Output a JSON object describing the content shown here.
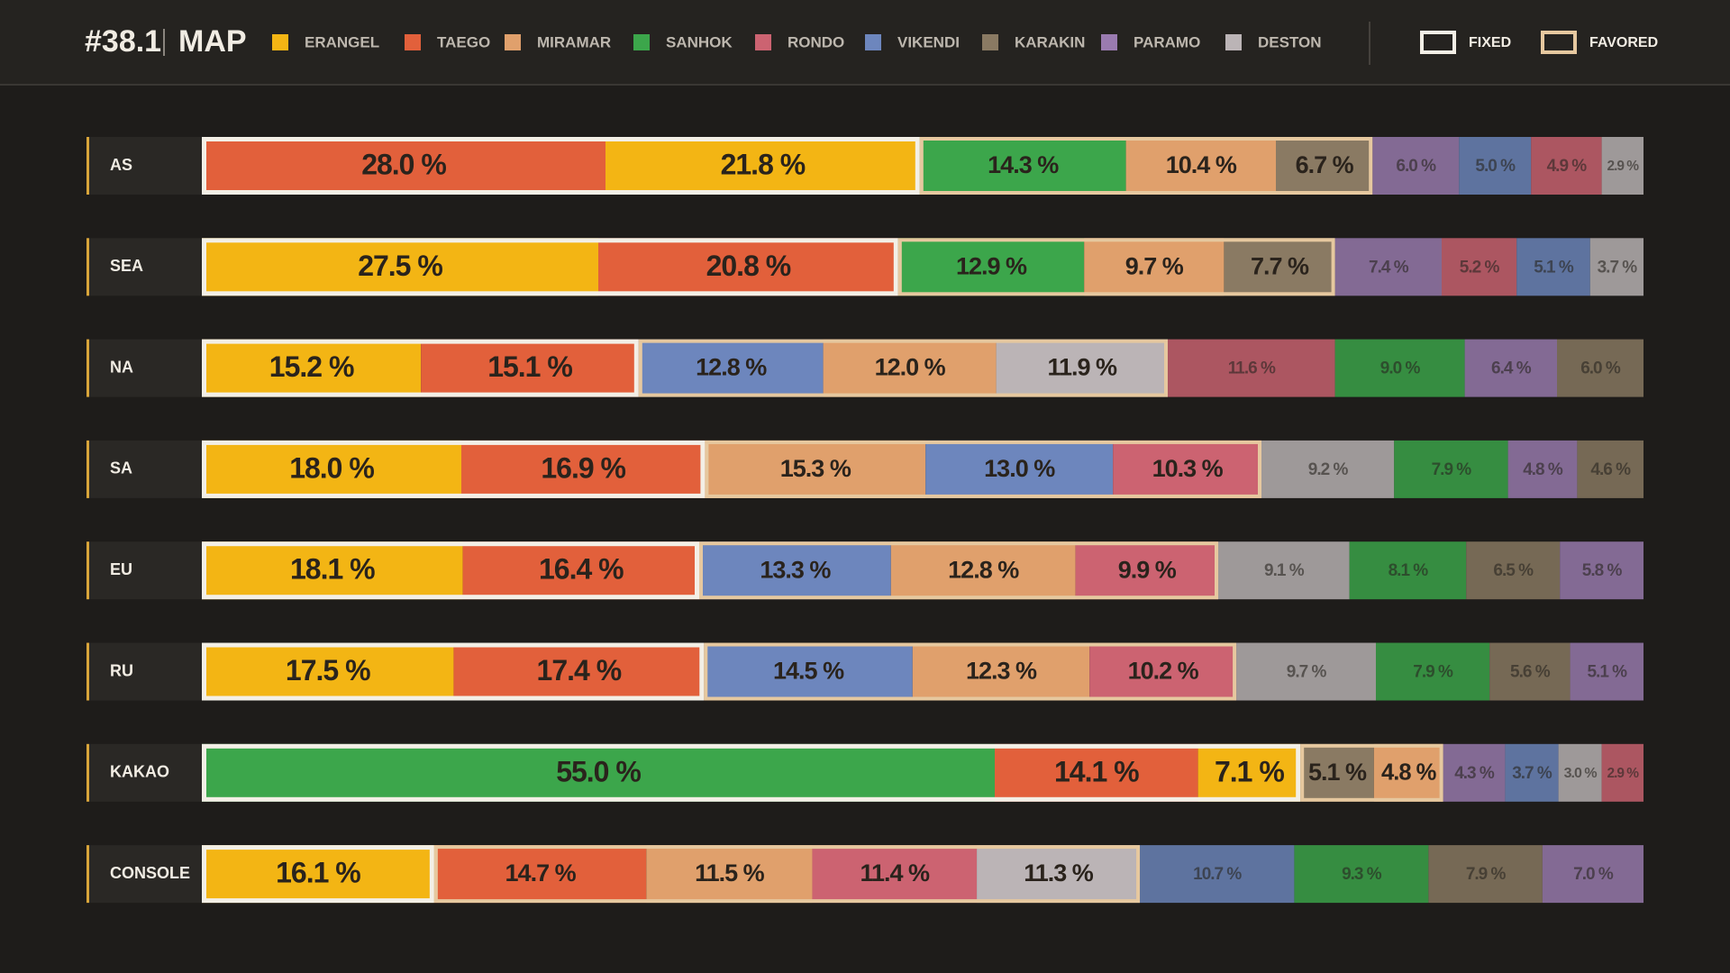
{
  "chart_data": {
    "type": "stacked-bar",
    "title": "#38.1",
    "subtitle": "MAP",
    "legend": [
      {
        "name": "ERANGEL",
        "color": "#f3b514"
      },
      {
        "name": "TAEGO",
        "color": "#e2603b"
      },
      {
        "name": "MIRAMAR",
        "color": "#e0a06c"
      },
      {
        "name": "SANHOK",
        "color": "#3ca64b"
      },
      {
        "name": "RONDO",
        "color": "#cc6371"
      },
      {
        "name": "VIKENDI",
        "color": "#6d86bd"
      },
      {
        "name": "KARAKIN",
        "color": "#8a7a63"
      },
      {
        "name": "PARAMO",
        "color": "#9a7bb0"
      },
      {
        "name": "DESTON",
        "color": "#bbb4b6"
      }
    ],
    "group_legend": [
      {
        "name": "FIXED",
        "color": "#f3efe6"
      },
      {
        "name": "FAVORED",
        "color": "#e6c89f"
      }
    ],
    "rows": [
      {
        "name": "AS",
        "fixed": 2,
        "favored": 3,
        "segments": [
          {
            "map": "TAEGO",
            "value": 28.0,
            "value_label": "28.0 %"
          },
          {
            "map": "ERANGEL",
            "value": 21.8,
            "value_label": "21.8 %"
          },
          {
            "map": "SANHOK",
            "value": 14.3,
            "value_label": "14.3 %"
          },
          {
            "map": "MIRAMAR",
            "value": 10.4,
            "value_label": "10.4 %"
          },
          {
            "map": "KARAKIN",
            "value": 6.7,
            "value_label": "6.7 %"
          },
          {
            "map": "PARAMO",
            "value": 6.0,
            "value_label": "6.0 %"
          },
          {
            "map": "VIKENDI",
            "value": 5.0,
            "value_label": "5.0 %"
          },
          {
            "map": "RONDO",
            "value": 4.9,
            "value_label": "4.9 %"
          },
          {
            "map": "DESTON",
            "value": 2.9,
            "value_label": "2.9 %"
          }
        ]
      },
      {
        "name": "SEA",
        "fixed": 2,
        "favored": 3,
        "segments": [
          {
            "map": "ERANGEL",
            "value": 27.5,
            "value_label": "27.5 %"
          },
          {
            "map": "TAEGO",
            "value": 20.8,
            "value_label": "20.8 %"
          },
          {
            "map": "SANHOK",
            "value": 12.9,
            "value_label": "12.9 %"
          },
          {
            "map": "MIRAMAR",
            "value": 9.7,
            "value_label": "9.7 %"
          },
          {
            "map": "KARAKIN",
            "value": 7.7,
            "value_label": "7.7 %"
          },
          {
            "map": "PARAMO",
            "value": 7.4,
            "value_label": "7.4 %"
          },
          {
            "map": "RONDO",
            "value": 5.2,
            "value_label": "5.2 %"
          },
          {
            "map": "VIKENDI",
            "value": 5.1,
            "value_label": "5.1 %"
          },
          {
            "map": "DESTON",
            "value": 3.7,
            "value_label": "3.7 %"
          }
        ]
      },
      {
        "name": "NA",
        "fixed": 2,
        "favored": 3,
        "segments": [
          {
            "map": "ERANGEL",
            "value": 15.2,
            "value_label": "15.2 %"
          },
          {
            "map": "TAEGO",
            "value": 15.1,
            "value_label": "15.1 %"
          },
          {
            "map": "VIKENDI",
            "value": 12.8,
            "value_label": "12.8 %"
          },
          {
            "map": "MIRAMAR",
            "value": 12.0,
            "value_label": "12.0 %"
          },
          {
            "map": "DESTON",
            "value": 11.9,
            "value_label": "11.9 %"
          },
          {
            "map": "RONDO",
            "value": 11.6,
            "value_label": "11.6 %"
          },
          {
            "map": "SANHOK",
            "value": 9.0,
            "value_label": "9.0 %"
          },
          {
            "map": "PARAMO",
            "value": 6.4,
            "value_label": "6.4 %"
          },
          {
            "map": "KARAKIN",
            "value": 6.0,
            "value_label": "6.0 %"
          }
        ]
      },
      {
        "name": "SA",
        "fixed": 2,
        "favored": 3,
        "segments": [
          {
            "map": "ERANGEL",
            "value": 18.0,
            "value_label": "18.0 %"
          },
          {
            "map": "TAEGO",
            "value": 16.9,
            "value_label": "16.9 %"
          },
          {
            "map": "MIRAMAR",
            "value": 15.3,
            "value_label": "15.3 %"
          },
          {
            "map": "VIKENDI",
            "value": 13.0,
            "value_label": "13.0 %"
          },
          {
            "map": "RONDO",
            "value": 10.3,
            "value_label": "10.3 %"
          },
          {
            "map": "DESTON",
            "value": 9.2,
            "value_label": "9.2 %"
          },
          {
            "map": "SANHOK",
            "value": 7.9,
            "value_label": "7.9 %"
          },
          {
            "map": "PARAMO",
            "value": 4.8,
            "value_label": "4.8 %"
          },
          {
            "map": "KARAKIN",
            "value": 4.6,
            "value_label": "4.6 %"
          }
        ]
      },
      {
        "name": "EU",
        "fixed": 2,
        "favored": 3,
        "segments": [
          {
            "map": "ERANGEL",
            "value": 18.1,
            "value_label": "18.1 %"
          },
          {
            "map": "TAEGO",
            "value": 16.4,
            "value_label": "16.4 %"
          },
          {
            "map": "VIKENDI",
            "value": 13.3,
            "value_label": "13.3 %"
          },
          {
            "map": "MIRAMAR",
            "value": 12.8,
            "value_label": "12.8 %"
          },
          {
            "map": "RONDO",
            "value": 9.9,
            "value_label": "9.9 %"
          },
          {
            "map": "DESTON",
            "value": 9.1,
            "value_label": "9.1 %"
          },
          {
            "map": "SANHOK",
            "value": 8.1,
            "value_label": "8.1 %"
          },
          {
            "map": "KARAKIN",
            "value": 6.5,
            "value_label": "6.5 %"
          },
          {
            "map": "PARAMO",
            "value": 5.8,
            "value_label": "5.8 %"
          }
        ]
      },
      {
        "name": "RU",
        "fixed": 2,
        "favored": 3,
        "segments": [
          {
            "map": "ERANGEL",
            "value": 17.5,
            "value_label": "17.5 %"
          },
          {
            "map": "TAEGO",
            "value": 17.4,
            "value_label": "17.4 %"
          },
          {
            "map": "VIKENDI",
            "value": 14.5,
            "value_label": "14.5 %"
          },
          {
            "map": "MIRAMAR",
            "value": 12.3,
            "value_label": "12.3 %"
          },
          {
            "map": "RONDO",
            "value": 10.2,
            "value_label": "10.2 %"
          },
          {
            "map": "DESTON",
            "value": 9.7,
            "value_label": "9.7 %"
          },
          {
            "map": "SANHOK",
            "value": 7.9,
            "value_label": "7.9 %"
          },
          {
            "map": "KARAKIN",
            "value": 5.6,
            "value_label": "5.6 %"
          },
          {
            "map": "PARAMO",
            "value": 5.1,
            "value_label": "5.1 %"
          }
        ]
      },
      {
        "name": "KAKAO",
        "fixed": 3,
        "favored": 2,
        "segments": [
          {
            "map": "SANHOK",
            "value": 55.0,
            "value_label": "55.0 %"
          },
          {
            "map": "TAEGO",
            "value": 14.1,
            "value_label": "14.1 %"
          },
          {
            "map": "ERANGEL",
            "value": 7.1,
            "value_label": "7.1 %"
          },
          {
            "map": "KARAKIN",
            "value": 5.1,
            "value_label": "5.1 %"
          },
          {
            "map": "MIRAMAR",
            "value": 4.8,
            "value_label": "4.8 %"
          },
          {
            "map": "PARAMO",
            "value": 4.3,
            "value_label": "4.3 %"
          },
          {
            "map": "VIKENDI",
            "value": 3.7,
            "value_label": "3.7 %"
          },
          {
            "map": "DESTON",
            "value": 3.0,
            "value_label": "3.0 %"
          },
          {
            "map": "RONDO",
            "value": 2.9,
            "value_label": "2.9 %"
          }
        ]
      },
      {
        "name": "CONSOLE",
        "fixed": 1,
        "favored": 4,
        "segments": [
          {
            "map": "ERANGEL",
            "value": 16.1,
            "value_label": "16.1 %"
          },
          {
            "map": "TAEGO",
            "value": 14.7,
            "value_label": "14.7 %"
          },
          {
            "map": "MIRAMAR",
            "value": 11.5,
            "value_label": "11.5 %"
          },
          {
            "map": "RONDO",
            "value": 11.4,
            "value_label": "11.4 %"
          },
          {
            "map": "DESTON",
            "value": 11.3,
            "value_label": "11.3 %"
          },
          {
            "map": "VIKENDI",
            "value": 10.7,
            "value_label": "10.7 %"
          },
          {
            "map": "SANHOK",
            "value": 9.3,
            "value_label": "9.3 %"
          },
          {
            "map": "KARAKIN",
            "value": 7.9,
            "value_label": "7.9 %"
          },
          {
            "map": "PARAMO",
            "value": 7.0,
            "value_label": "7.0 %"
          }
        ]
      }
    ]
  }
}
